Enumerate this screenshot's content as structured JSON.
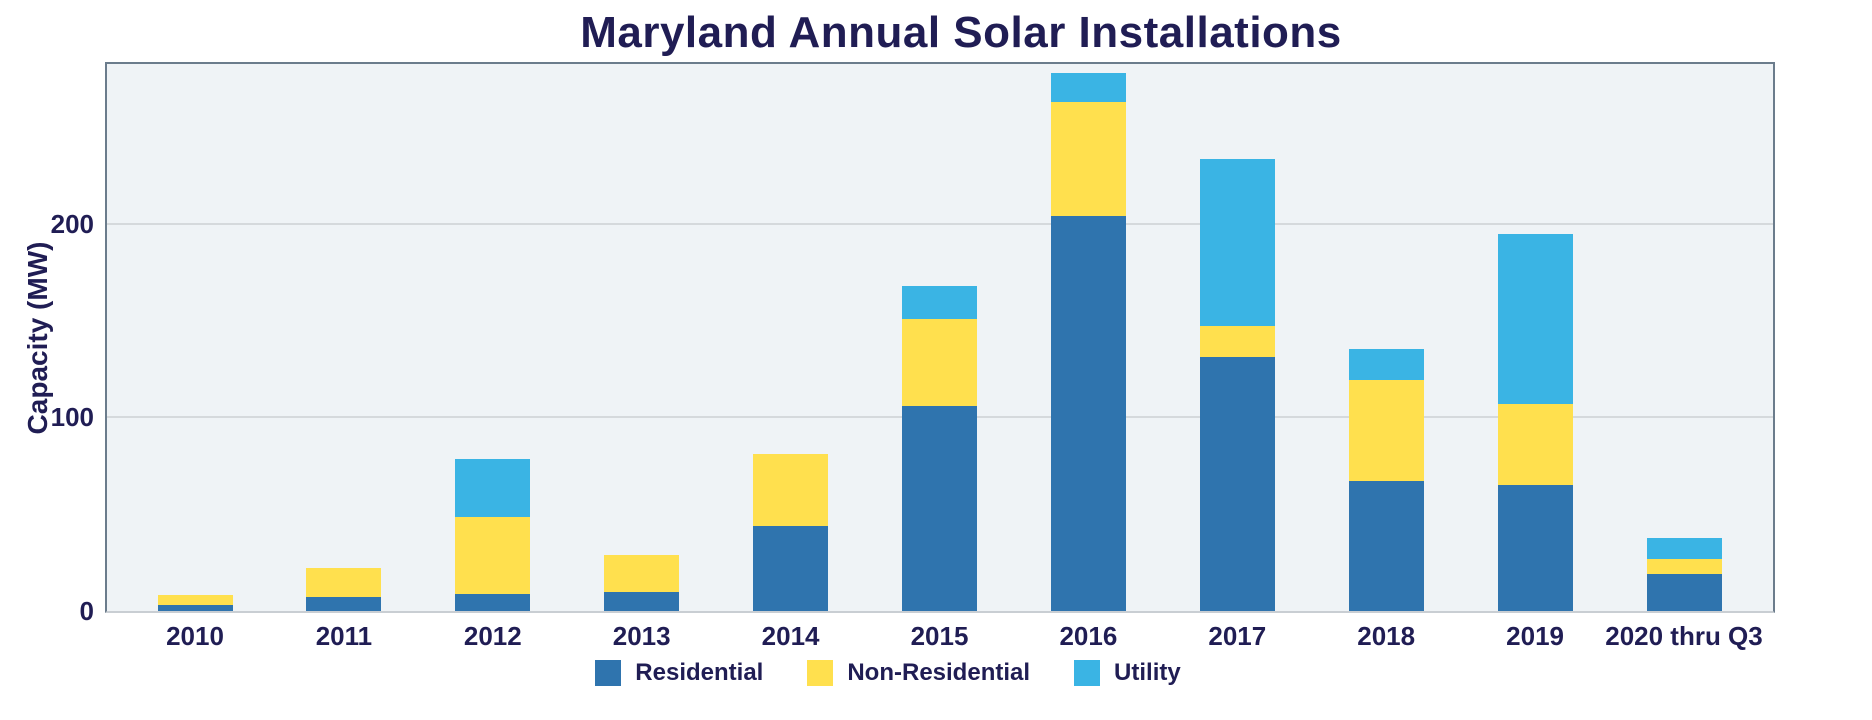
{
  "chart_data": {
    "type": "bar",
    "stacked": true,
    "title": "Maryland Annual Solar Installations",
    "ylabel": "Capacity (MW)",
    "xlabel": "",
    "categories": [
      "2010",
      "2011",
      "2012",
      "2013",
      "2014",
      "2015",
      "2016",
      "2017",
      "2018",
      "2019",
      "2020 thru Q3"
    ],
    "series": [
      {
        "name": "Residential",
        "color": "#2f74ae",
        "values": [
          3,
          7,
          9,
          10,
          44,
          106,
          204,
          131,
          67,
          65,
          19
        ]
      },
      {
        "name": "Non-Residential",
        "color": "#ffe04e",
        "values": [
          5,
          15,
          40,
          19,
          37,
          45,
          59,
          16,
          52,
          42,
          8
        ]
      },
      {
        "name": "Utility",
        "color": "#3ab4e4",
        "values": [
          0,
          0,
          30,
          0,
          0,
          17,
          15,
          86,
          16,
          88,
          11
        ]
      }
    ],
    "totals": [
      8,
      22,
      79,
      29,
      81,
      168,
      278,
      233,
      135,
      195,
      38
    ],
    "yticks": [
      0,
      100,
      200
    ],
    "ylim": [
      0,
      282
    ],
    "grid": true,
    "legend_position": "bottom"
  },
  "colors": {
    "text": "#201d54",
    "page_bg": "#ffffff",
    "plot_bg": "#eff3f6",
    "plot_border": "#6b7c8c",
    "baseline": "#c9ced3",
    "gridline": "#d5d9dc"
  }
}
